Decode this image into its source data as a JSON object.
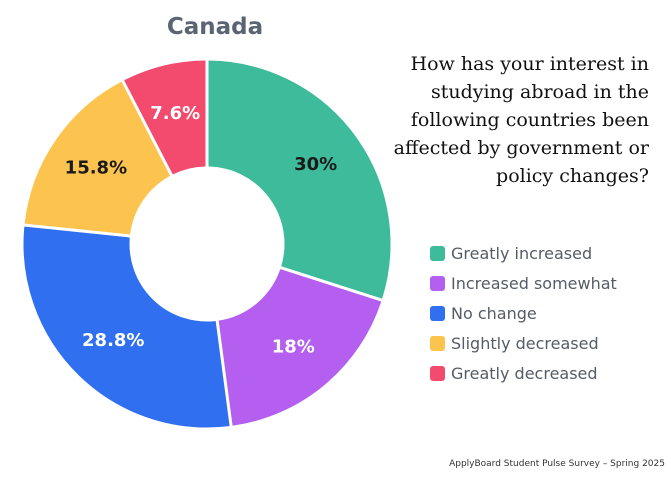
{
  "question": "How has your interest in studying abroad in the following countries been affected by government or policy changes?",
  "source": "ApplyBoard Student Pulse Survey – Spring 2025",
  "chart_data": {
    "type": "pie",
    "donut": true,
    "title": "Canada",
    "legend_position": "right",
    "unit": "%",
    "slices": [
      {
        "label": "Greatly increased",
        "value": 30,
        "display": "30%",
        "color": "#3dbb9b",
        "label_color": "#1a1a1a"
      },
      {
        "label": "Increased somewhat",
        "value": 18,
        "display": "18%",
        "color": "#b45ff0",
        "label_color": "#ffffff"
      },
      {
        "label": "No change",
        "value": 28.8,
        "display": "28.8%",
        "color": "#2f6ff0",
        "label_color": "#ffffff"
      },
      {
        "label": "Slightly decreased",
        "value": 15.8,
        "display": "15.8%",
        "color": "#fcc34e",
        "label_color": "#1a1a1a"
      },
      {
        "label": "Greatly decreased",
        "value": 7.6,
        "display": "7.6%",
        "color": "#f24b6e",
        "label_color": "#ffffff"
      }
    ]
  }
}
